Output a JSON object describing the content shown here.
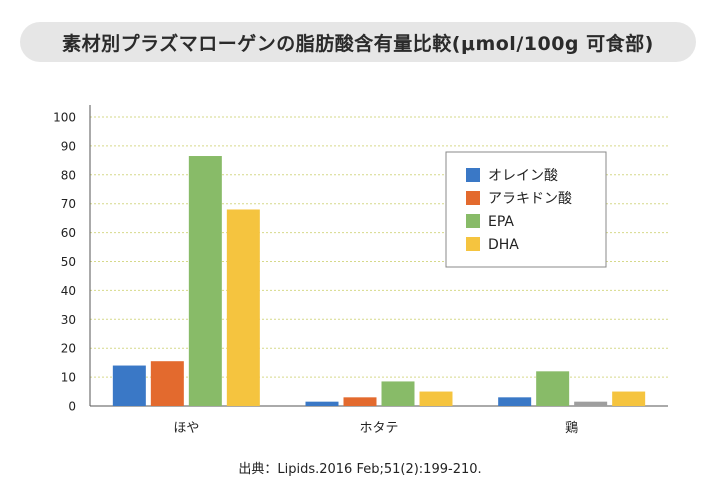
{
  "title": "素材別プラズマローゲンの脂肪酸含有量比較(μmol/100g 可食部)",
  "source": "出典：Lipids.2016 Feb;51(2):199-210.",
  "colors": {
    "oleic": "#3a78c6",
    "arachidonic": "#e36a2e",
    "epa": "#88bb68",
    "dha": "#f5c43f",
    "missing": "#9e9e9e",
    "grid": "#d6d98a",
    "axis": "#555555"
  },
  "chart_data": {
    "type": "bar",
    "categories": [
      "ほや",
      "ホタテ",
      "鶏"
    ],
    "series": [
      {
        "name": "オレイン酸",
        "color_key": "oleic",
        "values": [
          14,
          1.5,
          3
        ]
      },
      {
        "name": "アラキドン酸",
        "color_key": "arachidonic",
        "values": [
          15.5,
          3,
          null
        ]
      },
      {
        "name": "EPA",
        "color_key": "epa",
        "values": [
          86.5,
          8.5,
          12
        ]
      },
      {
        "name": "DHA",
        "color_key": "dha",
        "values": [
          68,
          5,
          5
        ]
      }
    ],
    "extra_bars": [
      {
        "category_index": 2,
        "after_series": 2,
        "value": 1.5,
        "color_key": "missing"
      }
    ],
    "ylim": [
      0,
      100
    ],
    "yticks": [
      0,
      10,
      20,
      30,
      40,
      50,
      60,
      70,
      80,
      90,
      100
    ],
    "grid": true,
    "legend_position": "top-right"
  }
}
